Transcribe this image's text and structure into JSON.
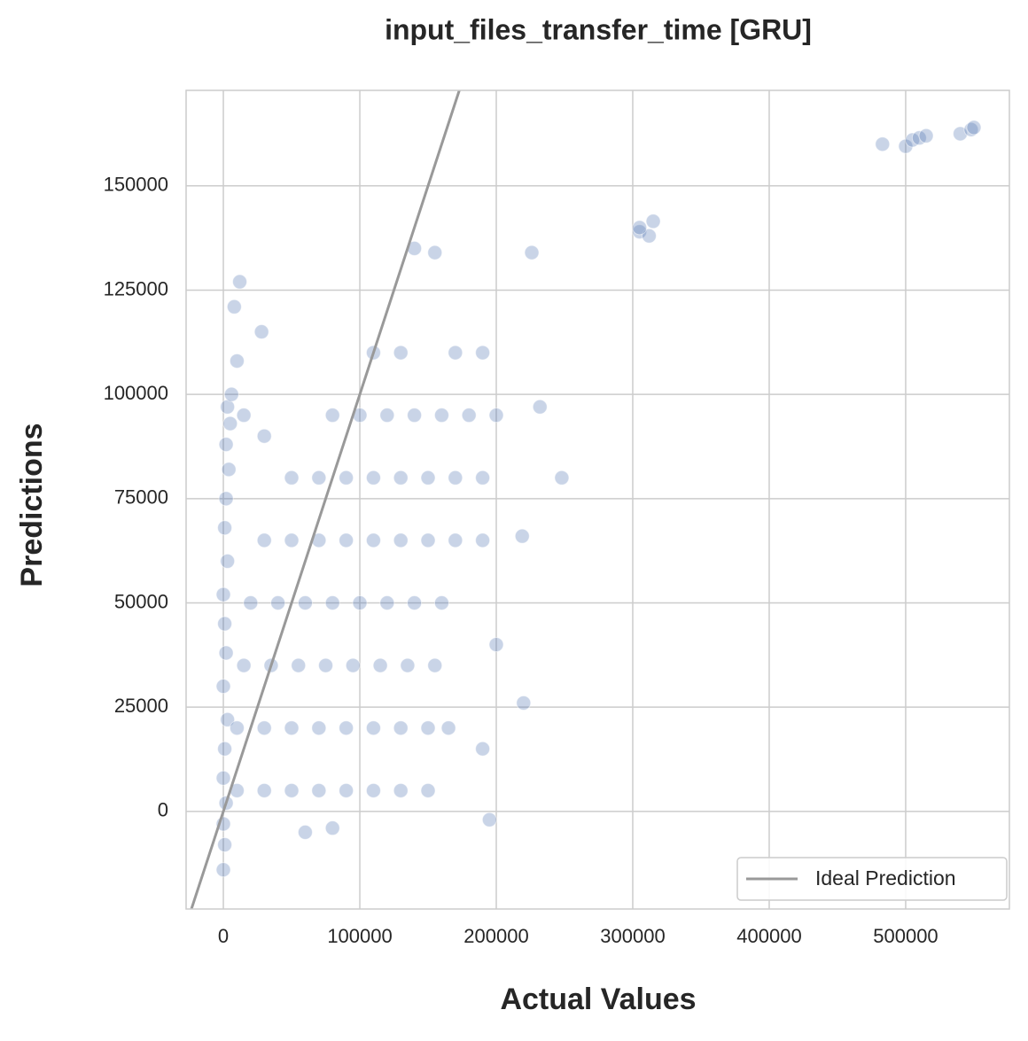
{
  "chart_data": {
    "type": "scatter",
    "title": "input_files_transfer_time [GRU]",
    "x_label": "Actual Values",
    "y_label": "Predictions",
    "color": "#4c72b0",
    "x": [
      0,
      1000,
      0,
      2000,
      0,
      1000,
      3000,
      0,
      2000,
      1000,
      0,
      3000,
      1000,
      2000,
      4000,
      2000,
      5000,
      3000,
      6000,
      10000,
      10000,
      30000,
      50000,
      70000,
      90000,
      110000,
      130000,
      150000,
      10000,
      30000,
      50000,
      70000,
      90000,
      110000,
      130000,
      150000,
      165000,
      15000,
      35000,
      55000,
      75000,
      95000,
      115000,
      135000,
      155000,
      20000,
      40000,
      60000,
      80000,
      100000,
      120000,
      140000,
      160000,
      30000,
      50000,
      70000,
      90000,
      110000,
      130000,
      150000,
      170000,
      190000,
      50000,
      70000,
      90000,
      110000,
      130000,
      150000,
      170000,
      190000,
      80000,
      100000,
      120000,
      140000,
      160000,
      180000,
      200000,
      110000,
      130000,
      170000,
      190000,
      15000,
      30000,
      200000,
      190000,
      195000,
      60000,
      80000,
      305000,
      312000,
      315000,
      305000,
      483000,
      500000,
      505000,
      510000,
      515000,
      540000,
      548000,
      550000,
      248000,
      232000,
      226000,
      140000,
      155000,
      12000,
      8000,
      28000,
      219000,
      220000
    ],
    "y": [
      -14000,
      -8000,
      -3000,
      2000,
      8000,
      15000,
      22000,
      30000,
      38000,
      45000,
      52000,
      60000,
      68000,
      75000,
      82000,
      88000,
      93000,
      97000,
      100000,
      108000,
      5000,
      5000,
      5000,
      5000,
      5000,
      5000,
      5000,
      5000,
      20000,
      20000,
      20000,
      20000,
      20000,
      20000,
      20000,
      20000,
      20000,
      35000,
      35000,
      35000,
      35000,
      35000,
      35000,
      35000,
      35000,
      50000,
      50000,
      50000,
      50000,
      50000,
      50000,
      50000,
      50000,
      65000,
      65000,
      65000,
      65000,
      65000,
      65000,
      65000,
      65000,
      65000,
      80000,
      80000,
      80000,
      80000,
      80000,
      80000,
      80000,
      80000,
      95000,
      95000,
      95000,
      95000,
      95000,
      95000,
      95000,
      110000,
      110000,
      110000,
      110000,
      95000,
      90000,
      40000,
      15000,
      -2000,
      -5000,
      -4000,
      139000,
      138000,
      141500,
      140000,
      160000,
      159500,
      161000,
      161500,
      162000,
      162500,
      163500,
      164000,
      80000,
      97000,
      134000,
      135000,
      134000,
      127000,
      121000,
      115000,
      66000,
      26000
    ],
    "ideal_line": {
      "name": "Ideal Prediction",
      "color": "#999999",
      "x": [
        -23400,
        172900
      ],
      "y": [
        -23400,
        172900
      ]
    },
    "xlim": [
      -27300,
      576000
    ],
    "ylim": [
      -23400,
      172900
    ],
    "xticks": [
      0,
      100000,
      200000,
      300000,
      400000,
      500000
    ],
    "yticks": [
      0,
      25000,
      50000,
      75000,
      100000,
      125000,
      150000
    ],
    "grid": true,
    "legend": "lower right"
  }
}
